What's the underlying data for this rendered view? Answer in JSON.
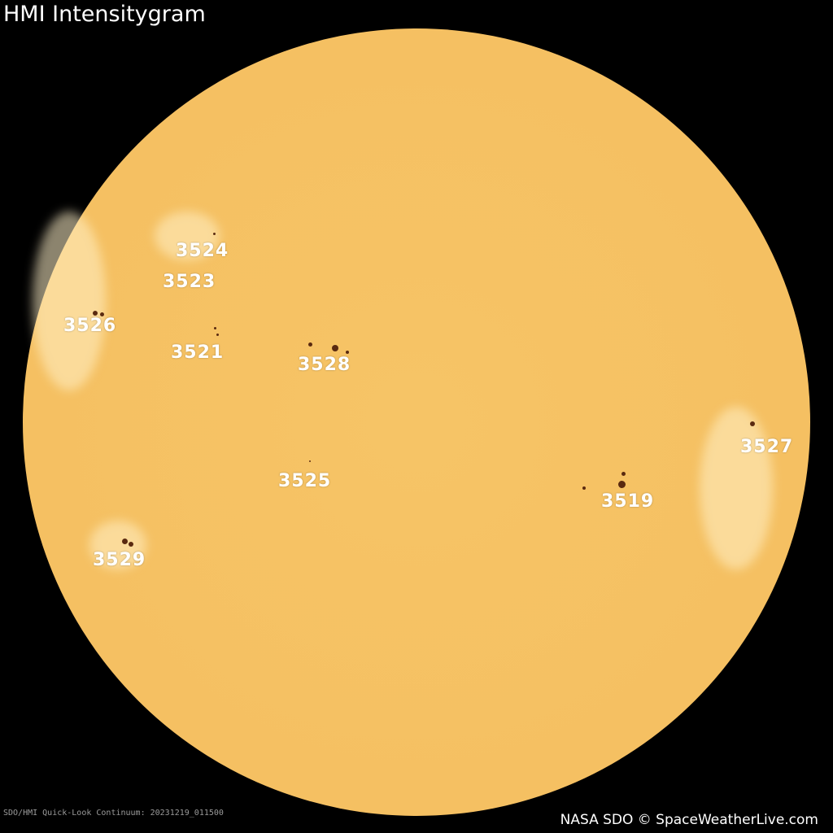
{
  "title": "HMI Intensitygram",
  "footer_left": "SDO/HMI Quick-Look Continuum: 20231219_011500",
  "footer_right": "NASA SDO © SpaceWeatherLive.com",
  "colors": {
    "background": "#000000",
    "sun_disk": "#f5c062",
    "sunspot": "#5a2a10",
    "label": "#ffffff"
  },
  "regions": [
    {
      "id": "region-3524",
      "label": "3524"
    },
    {
      "id": "region-3523",
      "label": "3523"
    },
    {
      "id": "region-3526",
      "label": "3526"
    },
    {
      "id": "region-3521",
      "label": "3521"
    },
    {
      "id": "region-3528",
      "label": "3528"
    },
    {
      "id": "region-3527",
      "label": "3527"
    },
    {
      "id": "region-3525",
      "label": "3525"
    },
    {
      "id": "region-3519",
      "label": "3519"
    },
    {
      "id": "region-3529",
      "label": "3529"
    }
  ]
}
